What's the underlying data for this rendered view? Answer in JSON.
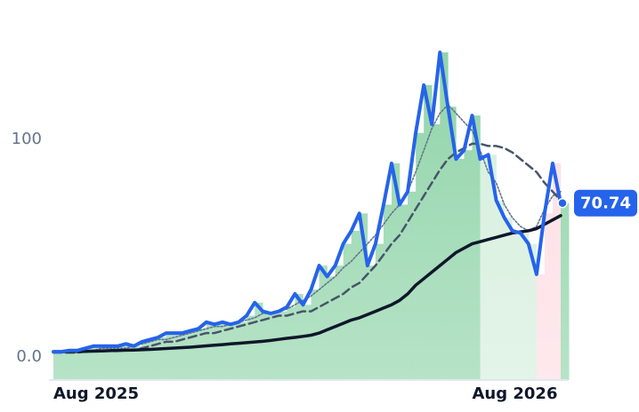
{
  "chart_data": {
    "type": "line",
    "categories": [
      "Aug 2025",
      null,
      null,
      null,
      null,
      null,
      null,
      null,
      null,
      null,
      null,
      null,
      null,
      null,
      null,
      null,
      null,
      null,
      null,
      null,
      null,
      null,
      null,
      null,
      null,
      null,
      null,
      null,
      null,
      null,
      null,
      null,
      null,
      null,
      null,
      null,
      null,
      null,
      null,
      null,
      null,
      null,
      null,
      null,
      null,
      null,
      null,
      null,
      null,
      null,
      null,
      null,
      "Aug 2026",
      null,
      null,
      null,
      null,
      null,
      null,
      null,
      null,
      null,
      null,
      null
    ],
    "series": [
      {
        "color": "#2563eb",
        "style": "solid",
        "values": [
          2.4,
          2.4,
          3,
          3,
          4,
          5,
          5,
          5,
          5,
          6,
          5,
          7,
          8,
          9,
          11,
          11,
          11,
          12,
          13,
          16,
          15,
          16,
          15,
          16,
          19,
          25,
          21,
          20,
          21,
          23,
          29,
          24,
          31,
          42,
          37,
          42,
          52,
          58,
          66,
          42,
          52,
          70,
          89,
          70,
          76,
          103,
          125,
          107,
          140,
          115,
          91,
          95,
          111,
          91,
          93,
          72,
          64,
          58,
          57,
          52,
          38,
          66,
          89,
          70.74
        ]
      },
      {
        "color": "#475569",
        "style": "dashed",
        "values": [
          2,
          2,
          2,
          2,
          2.5,
          2.5,
          2.5,
          3,
          3,
          3,
          3,
          4,
          5,
          6,
          7,
          7,
          8,
          9,
          10,
          11,
          11,
          12,
          13,
          14,
          15,
          16,
          17,
          18,
          19,
          19,
          20,
          21,
          21,
          23,
          25,
          27,
          29,
          32,
          34,
          38,
          42,
          47,
          52,
          56,
          62,
          68,
          74,
          80,
          86,
          91,
          94,
          96,
          98,
          98,
          97,
          97,
          96,
          94,
          91,
          88,
          85,
          80,
          76,
          72
        ]
      },
      {
        "color": "#64748b",
        "style": "dotted",
        "values": [
          2,
          2,
          3,
          3,
          3,
          3,
          4,
          4,
          4,
          4,
          5,
          6,
          7,
          8,
          8,
          9,
          10,
          11,
          12,
          13,
          14,
          14,
          15,
          16,
          17,
          18,
          20,
          20,
          21,
          22,
          24,
          26,
          28,
          31,
          34,
          37,
          41,
          44,
          48,
          52,
          56,
          61,
          66,
          70,
          76,
          85,
          95,
          105,
          112,
          116,
          112,
          108,
          104,
          95,
          85,
          80,
          70,
          64,
          60,
          58,
          60,
          68,
          74,
          76
        ]
      },
      {
        "color": "#0f172a",
        "style": "solid-thick",
        "values": [
          2.4,
          2.4,
          2.5,
          2.5,
          2.6,
          2.7,
          2.8,
          2.9,
          3,
          3.1,
          3.2,
          3.3,
          3.5,
          3.7,
          3.9,
          4.1,
          4.3,
          4.5,
          4.8,
          5.1,
          5.4,
          5.7,
          6,
          6.3,
          6.6,
          6.9,
          7.2,
          7.6,
          8.1,
          8.6,
          9,
          9.5,
          10,
          11,
          12.5,
          14,
          15.5,
          17,
          18,
          19.5,
          21,
          22.5,
          24,
          26,
          29,
          33,
          36,
          39,
          42,
          45,
          48,
          50,
          52,
          53,
          54,
          55,
          56,
          57,
          57.5,
          58,
          59,
          61,
          63,
          65
        ]
      }
    ],
    "area_colors": [
      "#8fd4a8",
      "#8fd4a8",
      "#8fd4a8",
      "#8fd4a8",
      "#8fd4a8",
      "#8fd4a8",
      "#8fd4a8",
      "#8fd4a8",
      "#8fd4a8",
      "#8fd4a8",
      "#8fd4a8",
      "#8fd4a8",
      "#8fd4a8",
      "#8fd4a8",
      "#8fd4a8",
      "#8fd4a8",
      "#8fd4a8",
      "#8fd4a8",
      "#8fd4a8",
      "#8fd4a8",
      "#8fd4a8",
      "#8fd4a8",
      "#8fd4a8",
      "#8fd4a8",
      "#8fd4a8",
      "#8fd4a8",
      "#8fd4a8",
      "#8fd4a8",
      "#8fd4a8",
      "#8fd4a8",
      "#8fd4a8",
      "#8fd4a8",
      "#8fd4a8",
      "#8fd4a8",
      "#8fd4a8",
      "#8fd4a8",
      "#8fd4a8",
      "#8fd4a8",
      "#8fd4a8",
      "#8fd4a8",
      "#8fd4a8",
      "#8fd4a8",
      "#8fd4a8",
      "#8fd4a8",
      "#8fd4a8",
      "#8fd4a8",
      "#8fd4a8",
      "#8fd4a8",
      "#8fd4a8",
      "#8fd4a8",
      "#8fd4a8",
      "#8fd4a8",
      "#8fd4a8",
      "#d4eedc",
      "#d4eedc",
      "#d4eedc",
      "#d4eedc",
      "#d4eedc",
      "#d4eedc",
      "#d4eedc",
      "#fddde3",
      "#fddde3",
      "#fddde3",
      "#8fd4a8"
    ],
    "ylim": [
      -10.6,
      148
    ],
    "yticks": [
      {
        "value": 0,
        "label": "0.0"
      },
      100
    ],
    "grid": false
  }
}
